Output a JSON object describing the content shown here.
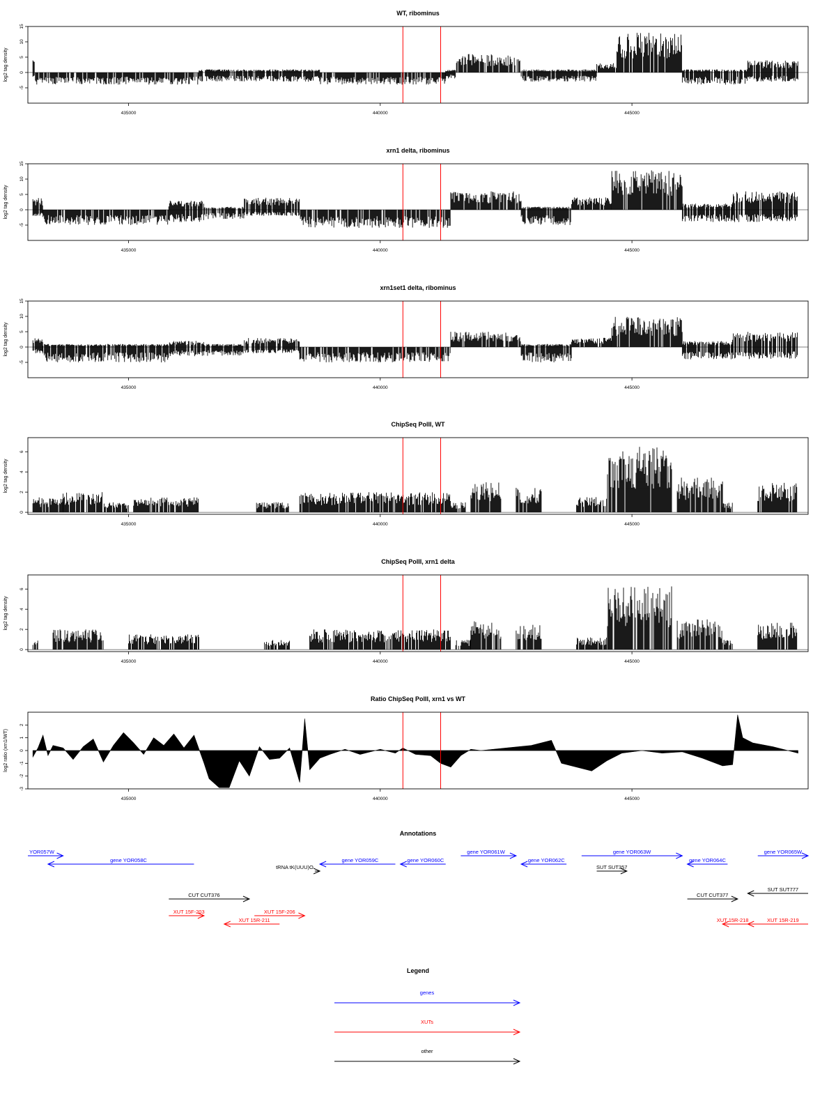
{
  "chart_data": [
    {
      "type": "bar",
      "title": "WT, ribominus",
      "xlabel": "",
      "ylabel": "log2 tag density",
      "xlim": [
        433000,
        448500
      ],
      "ylim": [
        -10,
        15
      ],
      "yticks": [
        -5,
        0,
        5,
        10,
        15
      ],
      "xticks": [
        435000,
        440000,
        445000
      ],
      "xtick_labels": [
        "435000",
        "440000",
        "445000"
      ],
      "markers_x": [
        440450,
        441200
      ],
      "segments": [
        {
          "x0": 433100,
          "x1": 433150,
          "top": 4,
          "bottom": -2
        },
        {
          "x0": 433150,
          "x1": 436400,
          "top": 0,
          "bottom": -4
        },
        {
          "x0": 436400,
          "x1": 438800,
          "top": 1,
          "bottom": -3
        },
        {
          "x0": 438800,
          "x1": 441300,
          "top": 0,
          "bottom": -4
        },
        {
          "x0": 441300,
          "x1": 441500,
          "top": 1,
          "bottom": -2
        },
        {
          "x0": 441500,
          "x1": 442800,
          "top": 6,
          "bottom": 0
        },
        {
          "x0": 442800,
          "x1": 444300,
          "top": 1,
          "bottom": -3
        },
        {
          "x0": 444300,
          "x1": 444700,
          "top": 3,
          "bottom": 0
        },
        {
          "x0": 444700,
          "x1": 446000,
          "top": 13,
          "bottom": 0
        },
        {
          "x0": 446000,
          "x1": 447300,
          "top": 1,
          "bottom": -4
        },
        {
          "x0": 447300,
          "x1": 448300,
          "top": 4,
          "bottom": -3
        }
      ]
    },
    {
      "type": "bar",
      "title": "xrn1 delta, ribominus",
      "xlabel": "",
      "ylabel": "log2 tag density",
      "xlim": [
        433000,
        448500
      ],
      "ylim": [
        -10,
        15
      ],
      "yticks": [
        -5,
        0,
        5,
        10,
        15
      ],
      "xticks": [
        435000,
        440000,
        445000
      ],
      "xtick_labels": [
        "435000",
        "440000",
        "445000"
      ],
      "markers_x": [
        440450,
        441200
      ],
      "segments": [
        {
          "x0": 433100,
          "x1": 433300,
          "top": 4,
          "bottom": -2
        },
        {
          "x0": 433300,
          "x1": 435800,
          "top": 0,
          "bottom": -5
        },
        {
          "x0": 435800,
          "x1": 436500,
          "top": 3,
          "bottom": -4
        },
        {
          "x0": 436500,
          "x1": 437300,
          "top": 1,
          "bottom": -3
        },
        {
          "x0": 437300,
          "x1": 438400,
          "top": 4,
          "bottom": -2
        },
        {
          "x0": 438400,
          "x1": 441400,
          "top": 0,
          "bottom": -6
        },
        {
          "x0": 441400,
          "x1": 442800,
          "top": 6,
          "bottom": 0
        },
        {
          "x0": 442800,
          "x1": 443800,
          "top": 1,
          "bottom": -5
        },
        {
          "x0": 443800,
          "x1": 444600,
          "top": 4,
          "bottom": 0
        },
        {
          "x0": 444600,
          "x1": 446000,
          "top": 13,
          "bottom": 0
        },
        {
          "x0": 446000,
          "x1": 447000,
          "top": 2,
          "bottom": -4
        },
        {
          "x0": 447000,
          "x1": 448300,
          "top": 6,
          "bottom": -4
        }
      ]
    },
    {
      "type": "bar",
      "title": "xrn1set1 delta, ribominus",
      "xlabel": "",
      "ylabel": "log2 tag density",
      "xlim": [
        433000,
        448500
      ],
      "ylim": [
        -10,
        15
      ],
      "yticks": [
        -5,
        0,
        5,
        10,
        15
      ],
      "xticks": [
        435000,
        440000,
        445000
      ],
      "xtick_labels": [
        "435000",
        "440000",
        "445000"
      ],
      "markers_x": [
        440450,
        441200
      ],
      "segments": [
        {
          "x0": 433100,
          "x1": 433300,
          "top": 3,
          "bottom": -2
        },
        {
          "x0": 433300,
          "x1": 435800,
          "top": 1,
          "bottom": -5
        },
        {
          "x0": 435800,
          "x1": 436500,
          "top": 2,
          "bottom": -3
        },
        {
          "x0": 436500,
          "x1": 437300,
          "top": 1,
          "bottom": -3
        },
        {
          "x0": 437300,
          "x1": 438400,
          "top": 3,
          "bottom": -2
        },
        {
          "x0": 438400,
          "x1": 441400,
          "top": 0,
          "bottom": -5
        },
        {
          "x0": 441400,
          "x1": 442800,
          "top": 5,
          "bottom": 0
        },
        {
          "x0": 442800,
          "x1": 443800,
          "top": 1,
          "bottom": -5
        },
        {
          "x0": 443800,
          "x1": 444600,
          "top": 3,
          "bottom": 0
        },
        {
          "x0": 444600,
          "x1": 446000,
          "top": 10,
          "bottom": 0
        },
        {
          "x0": 446000,
          "x1": 447000,
          "top": 2,
          "bottom": -4
        },
        {
          "x0": 447000,
          "x1": 448300,
          "top": 5,
          "bottom": -4
        }
      ]
    },
    {
      "type": "bar",
      "title": "ChipSeq PolII, WT",
      "xlabel": "",
      "ylabel": "log2 tag density",
      "xlim": [
        433000,
        448500
      ],
      "ylim": [
        -0.2,
        7.4
      ],
      "yticks": [
        0,
        2,
        4,
        6
      ],
      "xticks": [
        435000,
        440000,
        445000
      ],
      "xtick_labels": [
        "435000",
        "440000",
        "445000"
      ],
      "markers_x": [
        440450,
        441200
      ],
      "segments": [
        {
          "x0": 433100,
          "x1": 433700,
          "top": 1.5,
          "bottom": 0
        },
        {
          "x0": 433700,
          "x1": 434500,
          "top": 2,
          "bottom": 0
        },
        {
          "x0": 434500,
          "x1": 435000,
          "top": 1,
          "bottom": 0
        },
        {
          "x0": 435100,
          "x1": 436400,
          "top": 1.5,
          "bottom": 0
        },
        {
          "x0": 437500,
          "x1": 438200,
          "top": 1,
          "bottom": 0
        },
        {
          "x0": 438400,
          "x1": 438600,
          "top": 2,
          "bottom": 0
        },
        {
          "x0": 438600,
          "x1": 441400,
          "top": 2,
          "bottom": 0
        },
        {
          "x0": 441400,
          "x1": 441700,
          "top": 1,
          "bottom": 0
        },
        {
          "x0": 441800,
          "x1": 442400,
          "top": 3,
          "bottom": 0
        },
        {
          "x0": 442700,
          "x1": 443200,
          "top": 2.5,
          "bottom": 0
        },
        {
          "x0": 443900,
          "x1": 444500,
          "top": 1.5,
          "bottom": 0
        },
        {
          "x0": 444500,
          "x1": 445800,
          "top": 6.5,
          "bottom": 0
        },
        {
          "x0": 445900,
          "x1": 446800,
          "top": 3.5,
          "bottom": 0
        },
        {
          "x0": 446800,
          "x1": 447000,
          "top": 1,
          "bottom": 0
        },
        {
          "x0": 447500,
          "x1": 448300,
          "top": 3,
          "bottom": 0
        }
      ]
    },
    {
      "type": "bar",
      "title": "ChipSeq PolII, xrn1 delta",
      "xlabel": "",
      "ylabel": "log2 tag density",
      "xlim": [
        433000,
        448500
      ],
      "ylim": [
        -0.2,
        7.4
      ],
      "yticks": [
        0,
        2,
        4,
        6
      ],
      "xticks": [
        435000,
        440000,
        445000
      ],
      "xtick_labels": [
        "435000",
        "440000",
        "445000"
      ],
      "markers_x": [
        440450,
        441200
      ],
      "segments": [
        {
          "x0": 433100,
          "x1": 433200,
          "top": 1,
          "bottom": 0
        },
        {
          "x0": 433500,
          "x1": 434500,
          "top": 2,
          "bottom": 0
        },
        {
          "x0": 435000,
          "x1": 436400,
          "top": 1.5,
          "bottom": 0
        },
        {
          "x0": 437700,
          "x1": 438200,
          "top": 1,
          "bottom": 0
        },
        {
          "x0": 438600,
          "x1": 441400,
          "top": 2,
          "bottom": 0
        },
        {
          "x0": 441500,
          "x1": 441800,
          "top": 1,
          "bottom": 0
        },
        {
          "x0": 441800,
          "x1": 442400,
          "top": 3,
          "bottom": 0
        },
        {
          "x0": 442700,
          "x1": 443200,
          "top": 2.5,
          "bottom": 0
        },
        {
          "x0": 443900,
          "x1": 444500,
          "top": 1.2,
          "bottom": 0
        },
        {
          "x0": 444500,
          "x1": 445800,
          "top": 6.3,
          "bottom": 0
        },
        {
          "x0": 445900,
          "x1": 446800,
          "top": 3,
          "bottom": 0
        },
        {
          "x0": 446800,
          "x1": 447000,
          "top": 1,
          "bottom": 0
        },
        {
          "x0": 447500,
          "x1": 448300,
          "top": 2.8,
          "bottom": 0
        }
      ]
    },
    {
      "type": "area",
      "title": "Ratio ChipSeq PolII, xrn1 vs WT",
      "xlabel": "",
      "ylabel": "log2 ratio (xrn1/WT)",
      "xlim": [
        433000,
        448500
      ],
      "ylim": [
        -3,
        3
      ],
      "yticks": [
        -3,
        -2,
        -1,
        0,
        1,
        2
      ],
      "xticks": [
        435000,
        440000,
        445000
      ],
      "xtick_labels": [
        "435000",
        "440000",
        "445000"
      ],
      "markers_x": [
        440450,
        441200
      ],
      "x": [
        433100,
        433200,
        433300,
        433400,
        433500,
        433700,
        433900,
        434100,
        434300,
        434500,
        434700,
        434900,
        435100,
        435300,
        435500,
        435700,
        435900,
        436100,
        436300,
        436500,
        436600,
        436800,
        436900,
        437000,
        437200,
        437400,
        437600,
        437800,
        438000,
        438200,
        438400,
        438500,
        438600,
        438800,
        439000,
        439300,
        439600,
        440000,
        440300,
        440450,
        440700,
        441000,
        441200,
        441400,
        441600,
        441800,
        442000,
        442500,
        443000,
        443400,
        443600,
        443800,
        444200,
        444500,
        444800,
        445200,
        445600,
        446000,
        446400,
        446800,
        447000,
        447100,
        447200,
        447400,
        447800,
        448300
      ],
      "y": [
        -0.5,
        0.2,
        1.2,
        -0.4,
        0.4,
        0.2,
        -0.7,
        0.3,
        0.9,
        -0.9,
        0.4,
        1.4,
        0.6,
        -0.3,
        1.0,
        0.4,
        1.3,
        0.2,
        1.2,
        -1.0,
        -2.2,
        -2.9,
        -2.9,
        -2.9,
        -0.8,
        -2.0,
        0.3,
        -0.7,
        -0.6,
        0.2,
        -2.5,
        2.5,
        -1.5,
        -0.6,
        -0.3,
        0.1,
        -0.3,
        0.1,
        -0.2,
        0.2,
        -0.3,
        -0.4,
        -1.0,
        -1.3,
        -0.4,
        0.1,
        0.0,
        0.2,
        0.4,
        0.8,
        -1.0,
        -1.2,
        -1.6,
        -0.8,
        -0.2,
        0.0,
        -0.2,
        -0.1,
        -0.6,
        -1.2,
        -1.1,
        2.8,
        1.0,
        0.6,
        0.3,
        -0.2
      ]
    }
  ],
  "annotations": {
    "title": "Annotations",
    "items": [
      {
        "label": "YOR057W",
        "category": "genes",
        "x0": 433000,
        "x1": 433700,
        "row": 1,
        "label_x": 433200,
        "dir": "right"
      },
      {
        "label": "gene YOR058C",
        "category": "genes",
        "x0": 433400,
        "x1": 436300,
        "row": 2,
        "label_x": 435000,
        "dir": "left"
      },
      {
        "label": "tRNA tK(UUU)O",
        "category": "other",
        "x0": 438700,
        "x1": 438800,
        "row": 3,
        "label_x": 438300,
        "dir": "right"
      },
      {
        "label": "gene YOR059C",
        "category": "genes",
        "x0": 438800,
        "x1": 440300,
        "row": 2,
        "label_x": 439600,
        "dir": "left"
      },
      {
        "label": "gene YOR060C",
        "category": "genes",
        "x0": 440400,
        "x1": 441300,
        "row": 2,
        "label_x": 440900,
        "dir": "left"
      },
      {
        "label": "gene YOR061W",
        "category": "genes",
        "x0": 441600,
        "x1": 442700,
        "row": 1,
        "label_x": 442100,
        "dir": "right"
      },
      {
        "label": "gene YOR062C",
        "category": "genes",
        "x0": 442800,
        "x1": 443700,
        "row": 2,
        "label_x": 443300,
        "dir": "left"
      },
      {
        "label": "gene YOR063W",
        "category": "genes",
        "x0": 444000,
        "x1": 446000,
        "row": 1,
        "label_x": 445000,
        "dir": "right"
      },
      {
        "label": "gene YOR064C",
        "category": "genes",
        "x0": 446100,
        "x1": 446900,
        "row": 2,
        "label_x": 446500,
        "dir": "left"
      },
      {
        "label": "gene YOR065W",
        "category": "genes",
        "x0": 447500,
        "x1": 448500,
        "row": 1,
        "label_x": 448000,
        "dir": "right"
      },
      {
        "label": "CUT CUT376",
        "category": "other",
        "x0": 435800,
        "x1": 437400,
        "row": 4,
        "label_x": 436500,
        "dir": "right"
      },
      {
        "label": "SUT SUT357",
        "category": "other",
        "x0": 444300,
        "x1": 444900,
        "row": 3,
        "label_x": 444600,
        "dir": "right"
      },
      {
        "label": "CUT CUT377",
        "category": "other",
        "x0": 446100,
        "x1": 447100,
        "row": 4,
        "label_x": 446600,
        "dir": "right"
      },
      {
        "label": "SUT SUT777",
        "category": "other",
        "x0": 447300,
        "x1": 448500,
        "row": 5,
        "label_x": 448000,
        "dir": "left"
      },
      {
        "label": "XUT 15F-203",
        "category": "XUTs",
        "x0": 435800,
        "x1": 436500,
        "row": 6,
        "label_x": 436200,
        "dir": "right"
      },
      {
        "label": "XUT 15F-206",
        "category": "XUTs",
        "x0": 437500,
        "x1": 438500,
        "row": 6,
        "label_x": 438000,
        "dir": "right"
      },
      {
        "label": "XUT 15R-211",
        "category": "XUTs",
        "x0": 436900,
        "x1": 438000,
        "row": 7,
        "label_x": 437500,
        "dir": "left"
      },
      {
        "label": "XUT 15R-218",
        "category": "XUTs",
        "x0": 446800,
        "x1": 447500,
        "row": 7,
        "label_x": 447000,
        "dir": "left"
      },
      {
        "label": "XUT 15R-219",
        "category": "XUTs",
        "x0": 447300,
        "x1": 448500,
        "row": 7,
        "label_x": 448000,
        "dir": "left"
      }
    ]
  },
  "legend": {
    "title": "Legend",
    "entries": [
      {
        "label": "genes",
        "color": "#0000ff"
      },
      {
        "label": "XUTs",
        "color": "#ff0000"
      },
      {
        "label": "other",
        "color": "#000000"
      }
    ]
  },
  "colors": {
    "bars": "#000000",
    "markers": "#ff0000",
    "genes": "#0000ff",
    "XUTs": "#ff0000",
    "other": "#000000"
  }
}
